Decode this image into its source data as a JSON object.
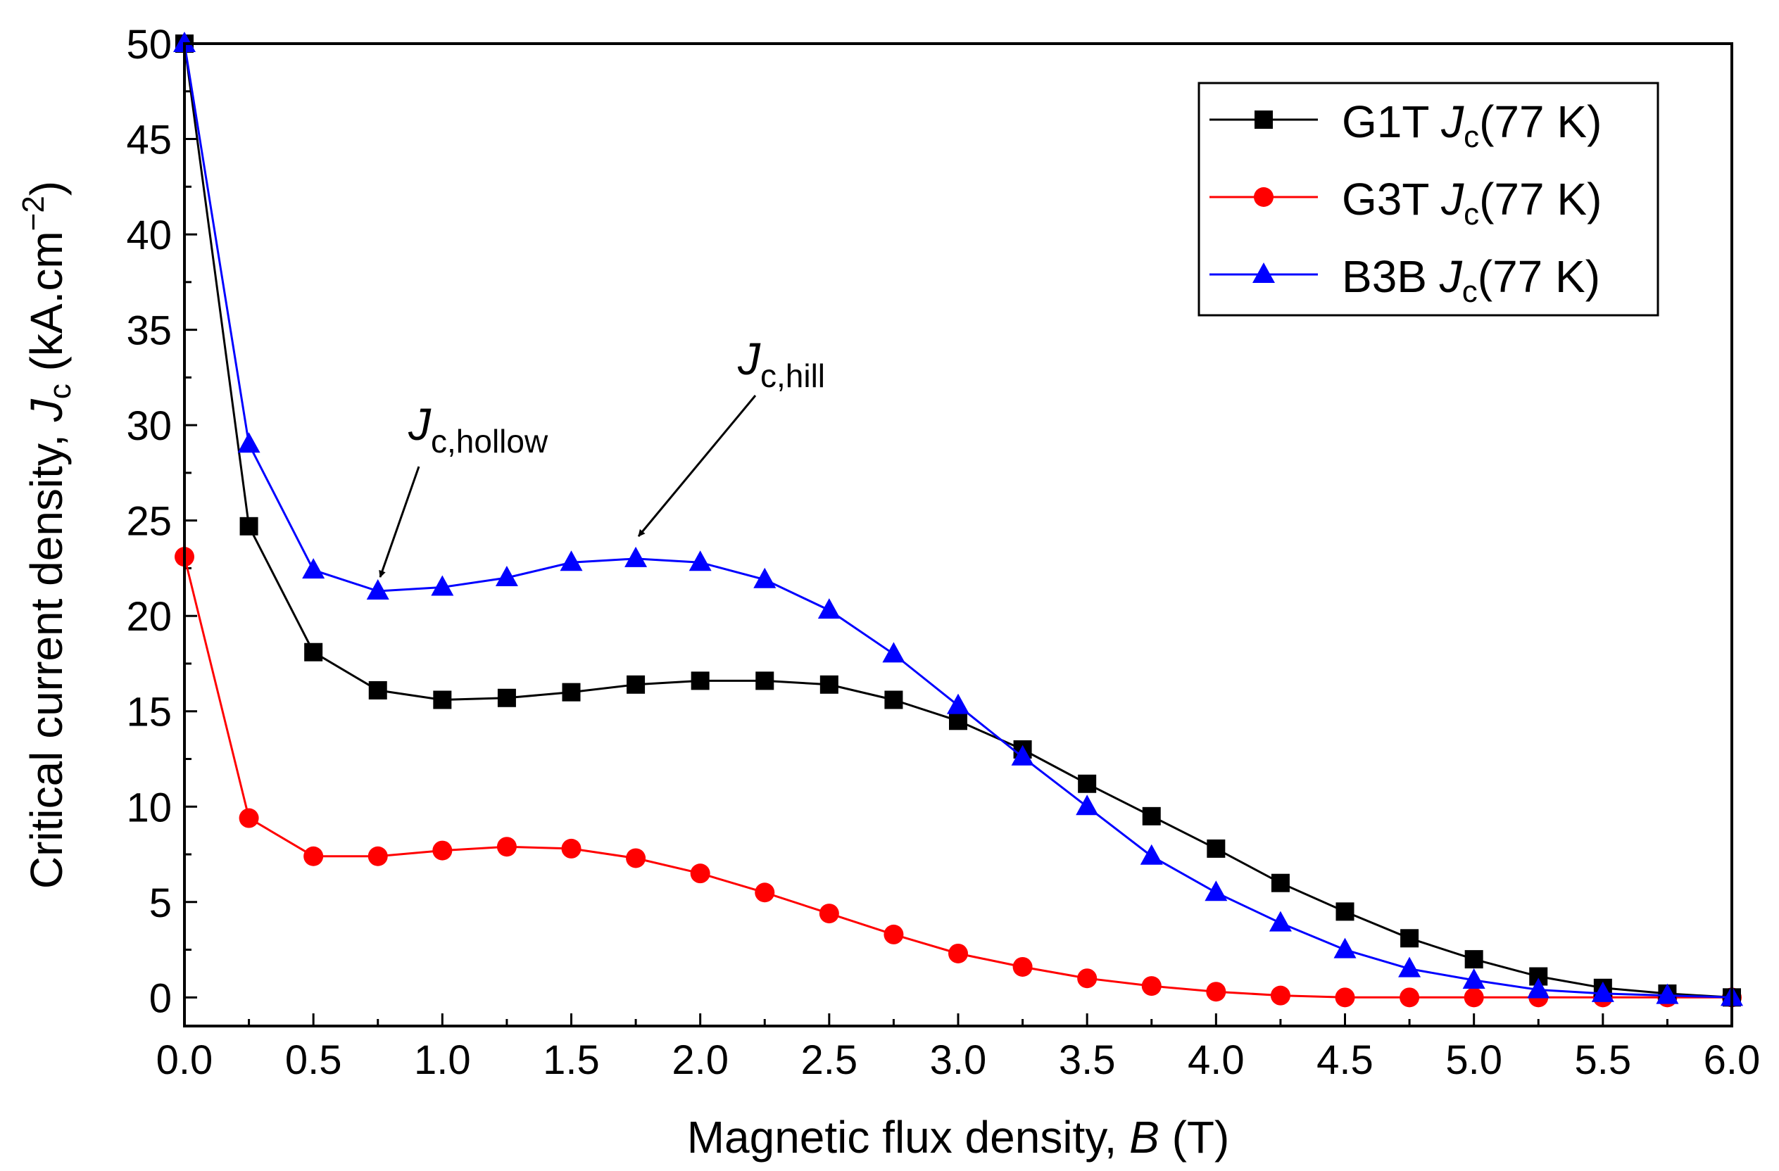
{
  "chart_data": {
    "type": "line",
    "xlabel": {
      "prefix": "Magnetic flux density, ",
      "symbol": "B",
      "suffix": " (T)"
    },
    "ylabel": {
      "prefix": "Critical current density, ",
      "symbol": "J",
      "sub": "c",
      "suffix": " (kA.cm",
      "sup": "−2",
      "close": ")"
    },
    "xlim": [
      0,
      6
    ],
    "ylim": [
      -1.5,
      50
    ],
    "x_ticks": [
      "0.0",
      "0.5",
      "1.0",
      "1.5",
      "2.0",
      "2.5",
      "3.0",
      "3.5",
      "4.0",
      "4.5",
      "5.0",
      "5.5",
      "6.0"
    ],
    "y_ticks": [
      "0",
      "5",
      "10",
      "15",
      "20",
      "25",
      "30",
      "35",
      "40",
      "45",
      "50"
    ],
    "x": [
      0,
      0.25,
      0.5,
      0.75,
      1.0,
      1.25,
      1.5,
      1.75,
      2.0,
      2.25,
      2.5,
      2.75,
      3.0,
      3.25,
      3.5,
      3.75,
      4.0,
      4.25,
      4.5,
      4.75,
      5.0,
      5.25,
      5.5,
      5.75,
      6.0
    ],
    "series": [
      {
        "name": "G1T",
        "color": "#000000",
        "marker": "square",
        "values": [
          50.0,
          24.7,
          18.1,
          16.1,
          15.6,
          15.7,
          16.0,
          16.4,
          16.6,
          16.6,
          16.4,
          15.6,
          14.5,
          13.0,
          11.2,
          9.5,
          7.8,
          6.0,
          4.5,
          3.1,
          2.0,
          1.1,
          0.5,
          0.2,
          0.0
        ]
      },
      {
        "name": "G3T",
        "color": "#ff0000",
        "marker": "circle",
        "values": [
          23.1,
          9.4,
          7.4,
          7.4,
          7.7,
          7.9,
          7.8,
          7.3,
          6.5,
          5.5,
          4.4,
          3.3,
          2.3,
          1.6,
          1.0,
          0.6,
          0.3,
          0.1,
          0.0,
          0.0,
          0.0,
          0.0,
          0.0,
          0.0,
          0.0
        ]
      },
      {
        "name": "B3B",
        "color": "#0000ff",
        "marker": "triangle",
        "values": [
          50.0,
          29.0,
          22.4,
          21.3,
          21.5,
          22.0,
          22.8,
          23.0,
          22.8,
          21.9,
          20.3,
          18.0,
          15.3,
          12.6,
          10.0,
          7.4,
          5.5,
          3.9,
          2.5,
          1.5,
          0.9,
          0.4,
          0.2,
          0.1,
          0.0
        ]
      }
    ],
    "legend": {
      "position": "top-right",
      "entries": [
        {
          "prefix": "G1T ",
          "symbol": "J",
          "sub": "c",
          "suffix": "(77 K)"
        },
        {
          "prefix": "G3T ",
          "symbol": "J",
          "sub": "c",
          "suffix": "(77 K)"
        },
        {
          "prefix": "B3B ",
          "symbol": "J",
          "sub": "c",
          "suffix": "(77 K)"
        }
      ]
    },
    "annotations": [
      {
        "symbol": "J",
        "sub": "c,hollow",
        "target_x": 0.75,
        "target_y": 21.3
      },
      {
        "symbol": "J",
        "sub": "c,hill",
        "target_x": 1.75,
        "target_y": 23.0
      }
    ]
  }
}
